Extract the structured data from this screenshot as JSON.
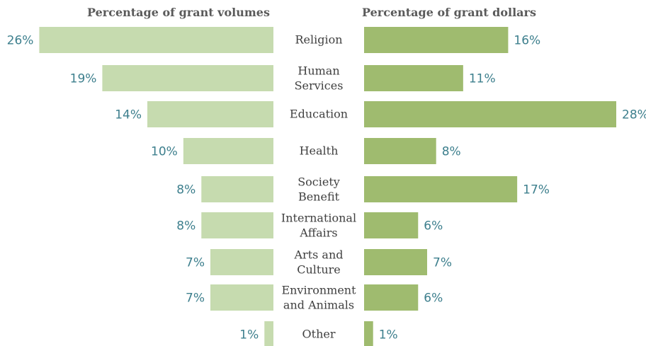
{
  "chart_data": {
    "type": "bar",
    "orientation": "horizontal",
    "layout": "back-to-back",
    "categories": [
      [
        "Religion"
      ],
      [
        "Human",
        "Services"
      ],
      [
        "Education"
      ],
      [
        "Health"
      ],
      [
        "Society",
        "Benefit"
      ],
      [
        "International",
        "Affairs"
      ],
      [
        "Arts and",
        "Culture"
      ],
      [
        "Environment",
        "and Animals"
      ],
      [
        "Other"
      ]
    ],
    "series": [
      {
        "name": "Percentage of grant volumes",
        "side": "left",
        "color": "#c6dbaf",
        "values": [
          26,
          19,
          14,
          10,
          8,
          8,
          7,
          7,
          1
        ],
        "labels": [
          "26%",
          "19%",
          "14%",
          "10%",
          "8%",
          "8%",
          "7%",
          "7%",
          "1%"
        ]
      },
      {
        "name": "Percentage of grant dollars",
        "side": "right",
        "color": "#9fbb6f",
        "values": [
          16,
          11,
          28,
          8,
          17,
          6,
          7,
          6,
          1
        ],
        "labels": [
          "16%",
          "11%",
          "28%",
          "8%",
          "17%",
          "6%",
          "7%",
          "6%",
          "1%"
        ]
      }
    ],
    "unit": "%",
    "value_label_color": "#3d7f8d",
    "xlim": [
      0,
      28
    ],
    "grid": false,
    "legend": "none"
  }
}
